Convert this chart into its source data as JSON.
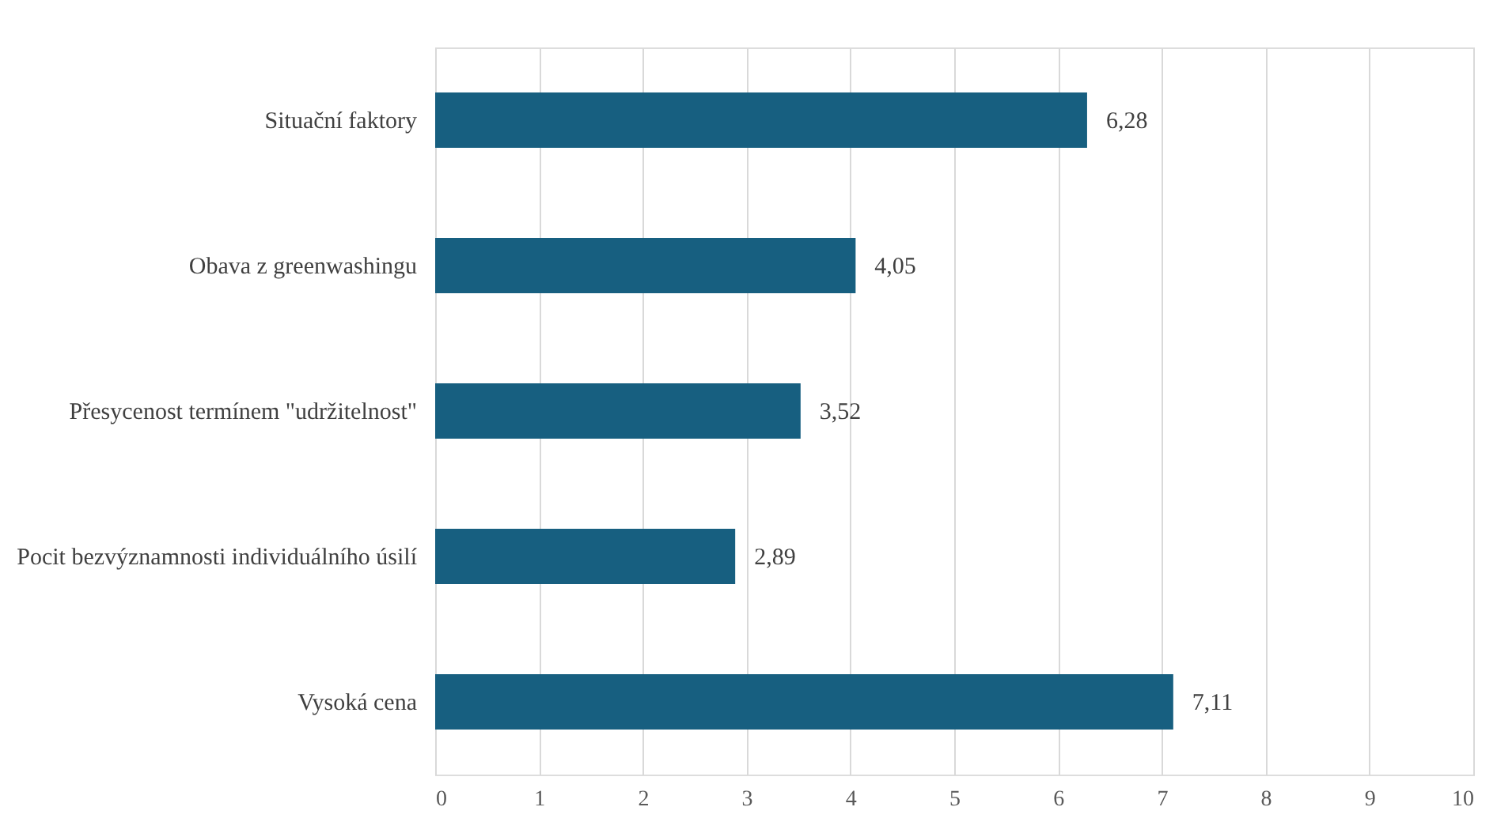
{
  "chart_data": {
    "type": "bar",
    "orientation": "horizontal",
    "categories": [
      "Situační faktory",
      "Obava z greenwashingu",
      "Přesycenost termínem \"udržitelnost\"",
      "Pocit bezvýznamnosti individuálního úsilí",
      "Vysoká cena"
    ],
    "values": [
      6.28,
      4.05,
      3.52,
      2.89,
      7.11
    ],
    "value_labels": [
      "6,28",
      "4,05",
      "3,52",
      "2,89",
      "7,11"
    ],
    "color": "#175f80",
    "xlim": [
      0,
      10
    ],
    "xticks": [
      0,
      1,
      2,
      3,
      4,
      5,
      6,
      7,
      8,
      9,
      10
    ],
    "grid": "x"
  }
}
